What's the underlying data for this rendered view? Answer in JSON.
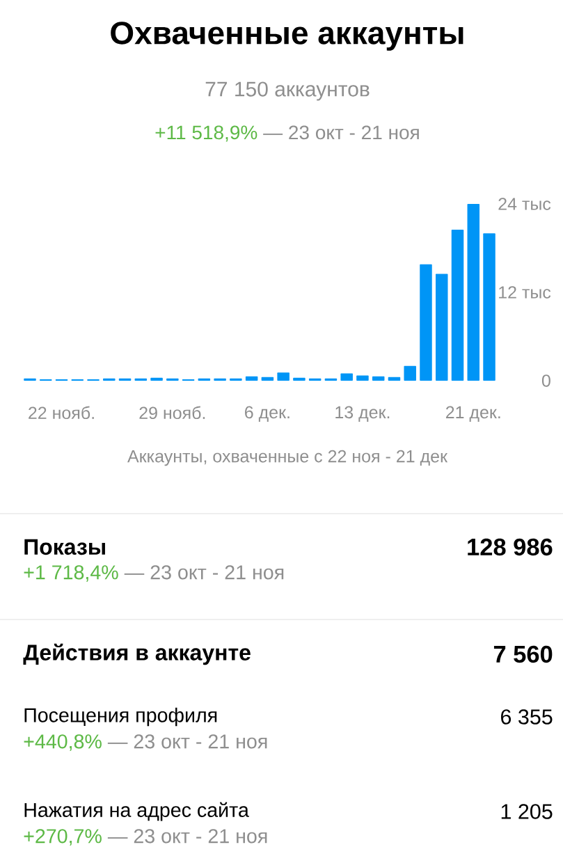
{
  "chart_data": [
    {
      "type": "bar",
      "title": "Охваченные аккаунты",
      "subtitle": "77 150 аккаунтов",
      "annotations": [
        "+11 518,9%",
        "— 23 окт - 21 ноя"
      ],
      "xlabel": "Аккаунты, охваченные с 22 ноя - 21 дек",
      "categories": [
        null,
        null,
        "22 нояб.",
        null,
        null,
        null,
        null,
        null,
        null,
        "29 нояб.",
        null,
        null,
        null,
        null,
        null,
        "6 дек.",
        null,
        null,
        null,
        null,
        null,
        "13 дек.",
        null,
        null,
        null,
        null,
        null,
        null,
        "21 дек.",
        null
      ],
      "values": [
        0.3,
        0.2,
        0.2,
        0.2,
        0.2,
        0.3,
        0.3,
        0.3,
        0.4,
        0.3,
        0.2,
        0.3,
        0.3,
        0.3,
        0.6,
        0.5,
        1.1,
        0.4,
        0.3,
        0.3,
        1.0,
        0.7,
        0.6,
        0.5,
        2.0,
        15.8,
        14.5,
        20.5,
        24.0,
        20.0
      ],
      "color": "#0095f6",
      "ylim": [
        0,
        24
      ],
      "yticks": [
        0,
        {
          "value": 12,
          "label": "12 тыс"
        },
        {
          "value": 24,
          "label": "24 тыс"
        }
      ]
    },
    {
      "type": "other",
      "categories": [
        "Показы",
        "Действия в аккаунте",
        "Посещения профиля",
        "Нажатия на адрес сайта"
      ],
      "value_labels": [
        "128 986",
        "7 560",
        "6 355",
        "1 205"
      ],
      "annotations": [
        "+1 718,4%",
        "— 23 окт - 21 ноя",
        "+440,8%",
        "— 23 окт - 21 ноя",
        "+270,7%",
        "— 23 окт - 21 ноя"
      ]
    }
  ]
}
